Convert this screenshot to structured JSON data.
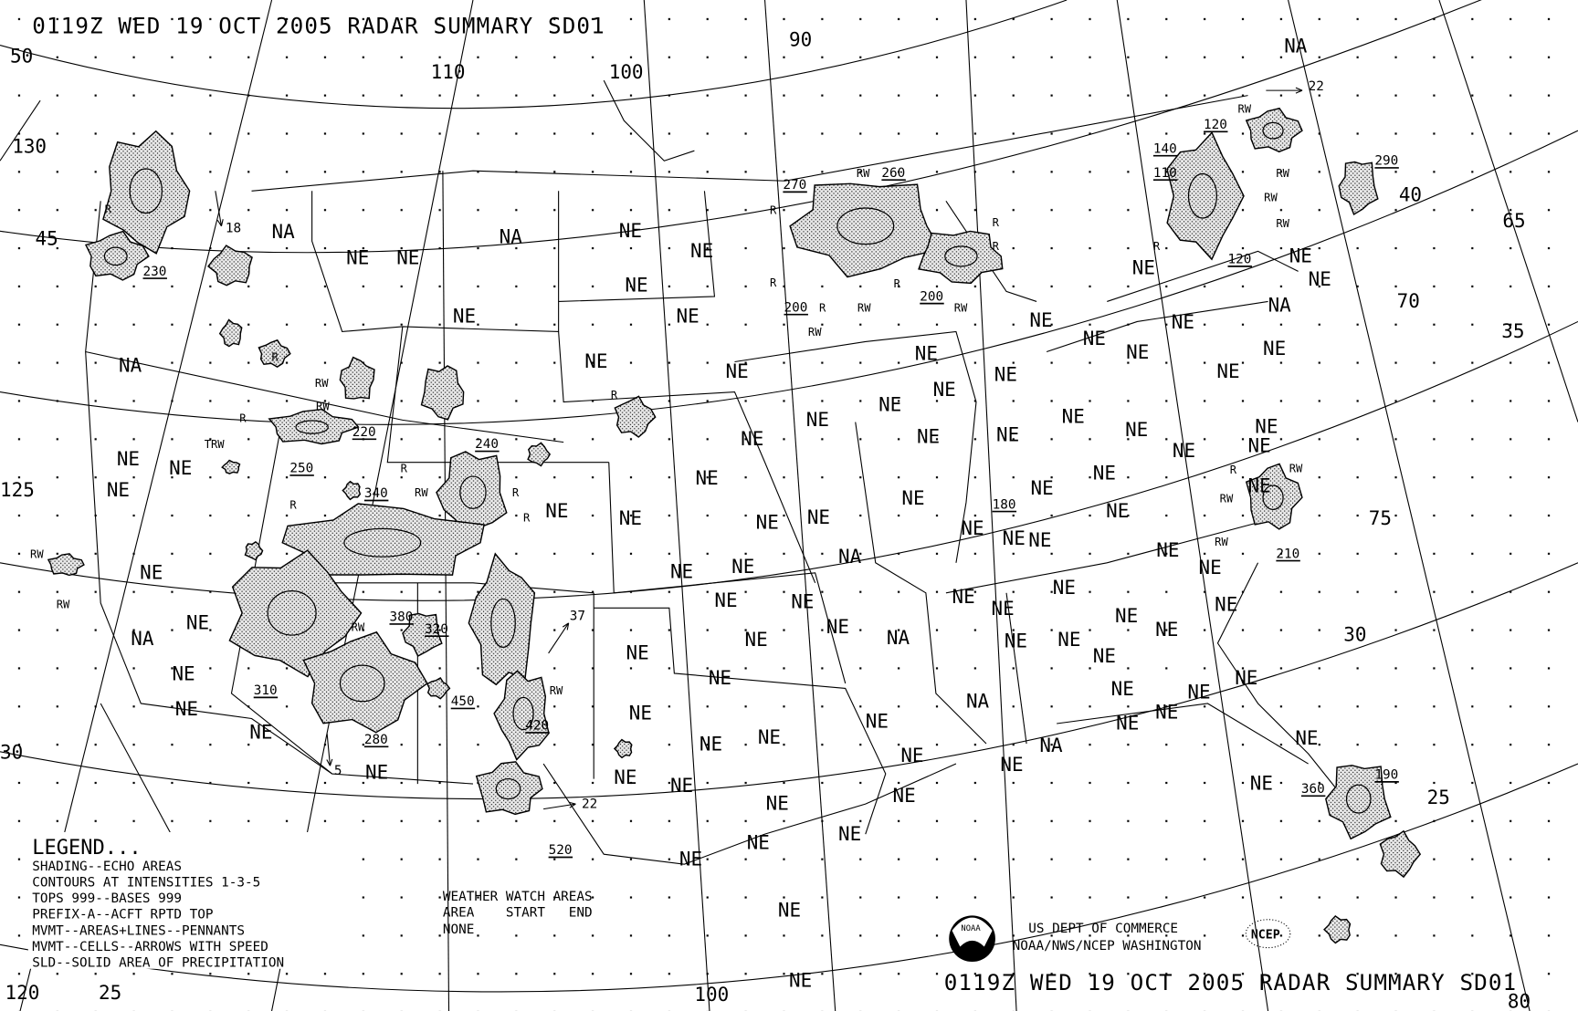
{
  "header": {
    "title": "0119Z WED 19 OCT 2005 RADAR SUMMARY SD01"
  },
  "footer": {
    "title": "0119Z WED 19 OCT 2005 RADAR SUMMARY SD01",
    "agency_line1": "US DEPT OF COMMERCE",
    "agency_line2": "NOAA/NWS/NCEP WASHINGTON",
    "noaa_logo_text": "NOAA",
    "ncep_logo_text": "NCEP"
  },
  "legend": {
    "heading": "LEGEND...",
    "lines": [
      "SHADING--ECHO AREAS",
      "CONTOURS AT INTENSITIES 1-3-5",
      "TOPS 999--BASES 999",
      "PREFIX-A--ACFT RPTD TOP",
      "MVMT--AREAS+LINES--PENNANTS",
      "MVMT--CELLS--ARROWS WITH SPEED",
      "SLD--SOLID AREA OF PRECIPITATION"
    ]
  },
  "watch_areas": {
    "heading": "WEATHER WATCH AREAS",
    "columns": "AREA    START   END",
    "value": "NONE"
  },
  "map": {
    "grid_labels": [
      "50",
      "130",
      "45",
      "125",
      "120",
      "25",
      "110",
      "100",
      "90",
      "100",
      "80",
      "65",
      "40",
      "70",
      "35",
      "75",
      "30",
      "25",
      "30"
    ],
    "region_labels": [
      "NA",
      "NA",
      "NE",
      "NE",
      "NA",
      "NE",
      "NE",
      "NE",
      "NE",
      "NE",
      "NA",
      "NE",
      "NE",
      "NE",
      "NE",
      "NE",
      "NE",
      "NE",
      "NE",
      "NE",
      "NE",
      "NE",
      "NE",
      "NE",
      "NE",
      "NE",
      "NE",
      "NE",
      "NE",
      "NE",
      "NE",
      "NA",
      "NE",
      "NE",
      "NE",
      "NE",
      "NE",
      "NE",
      "NE",
      "NE",
      "NE",
      "NE",
      "NE",
      "NE",
      "NE",
      "NE",
      "NE",
      "NE",
      "NE",
      "NE",
      "NE",
      "NE",
      "NE",
      "NE",
      "NE",
      "NE",
      "NE",
      "NE",
      "NE",
      "NA",
      "NE",
      "NA",
      "NA",
      "NE",
      "NE",
      "NA",
      "NE",
      "NE",
      "NE",
      "NE",
      "NE",
      "NE",
      "NE",
      "NE",
      "NE",
      "NE",
      "NE",
      "NE",
      "NE",
      "NE",
      "NE",
      "NE",
      "NE",
      "NE",
      "NE",
      "NE",
      "NE",
      "NE",
      "NE",
      "NE",
      "NE",
      "NE",
      "NE",
      "NA",
      "NE",
      "NE",
      "NE",
      "NE",
      "NE",
      "NE",
      "NE",
      "NE",
      "NE",
      "NE"
    ],
    "precip_labels": [
      "R",
      "R",
      "RW",
      "R",
      "R",
      "R",
      "RW",
      "RW",
      "RW",
      "RW",
      "R",
      "R",
      "RW",
      "RW",
      "R",
      "RW",
      "R",
      "RW",
      "RW",
      "R",
      "TRW",
      "R",
      "RW",
      "R",
      "R",
      "R",
      "R",
      "RW",
      "RW",
      "RW",
      "RW",
      "RW",
      "RW",
      "RW",
      "R"
    ],
    "tops": [
      "230",
      "220",
      "250",
      "240",
      "340",
      "380",
      "320",
      "310",
      "280",
      "450",
      "420",
      "520",
      "270",
      "260",
      "200",
      "200",
      "180",
      "140",
      "120",
      "110",
      "120",
      "290",
      "210",
      "360",
      "190"
    ],
    "cell_speeds": [
      "18",
      "37",
      "22",
      "5",
      "22"
    ]
  }
}
